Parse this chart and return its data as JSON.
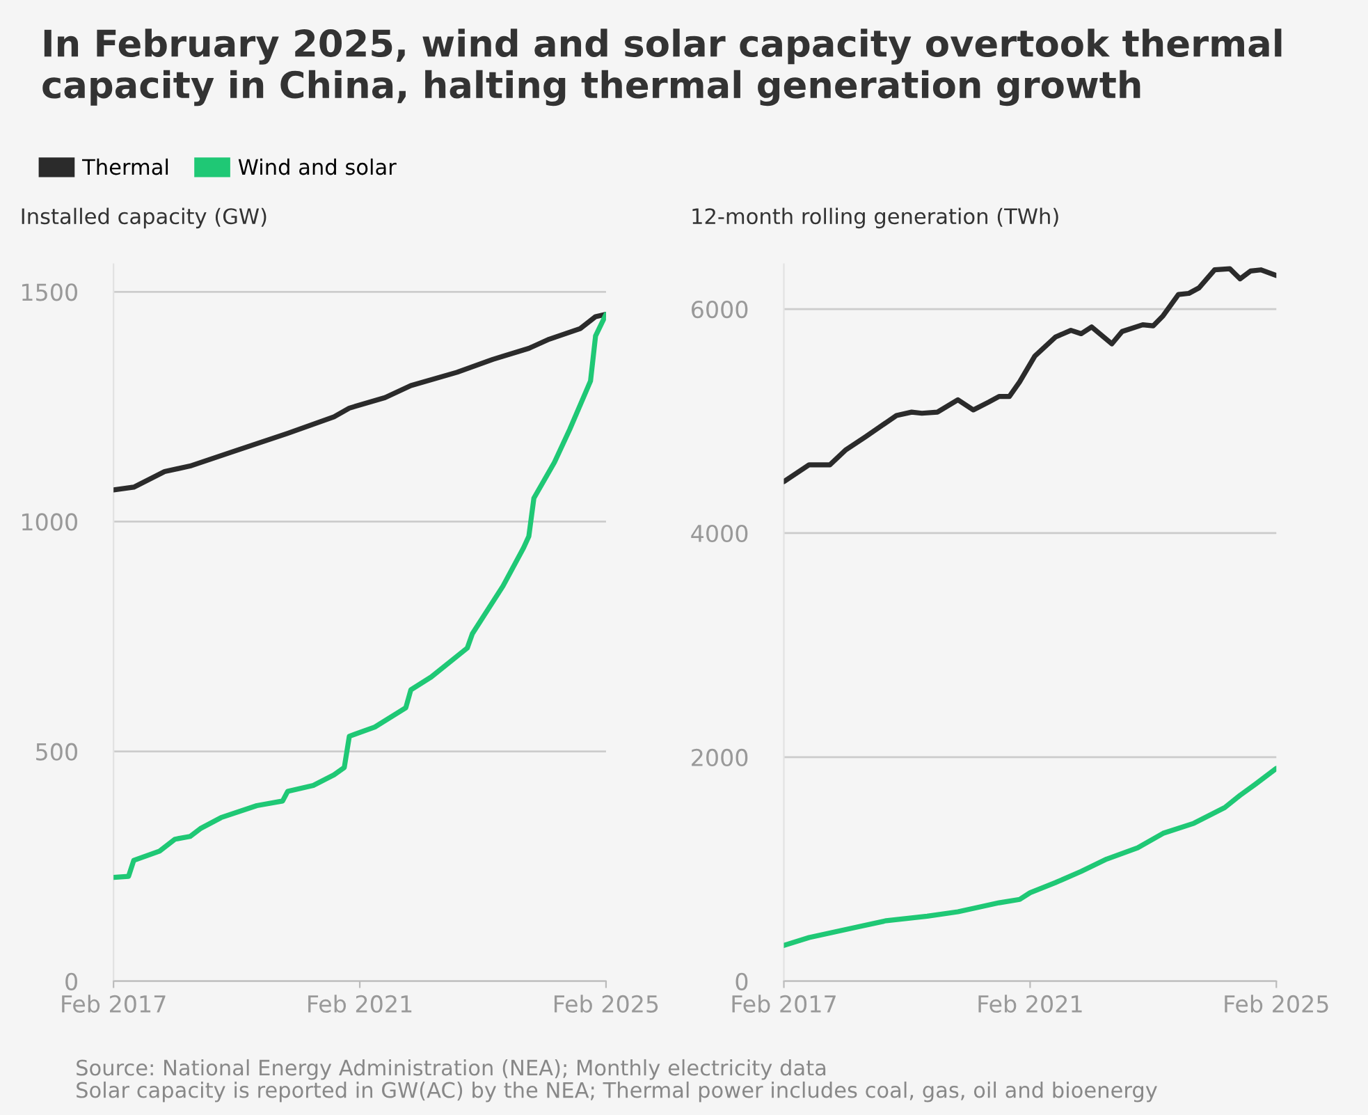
{
  "chart_data": [
    {
      "type": "line",
      "title": "In February 2025, wind and solar capacity overtook thermal capacity in China, halting thermal generation growth",
      "ylabel": "Installed capacity (GW)",
      "legend": "top",
      "grid": "y",
      "xlim": [
        "2017-02",
        "2025-02"
      ],
      "xticks": [
        {
          "value": "2017-02",
          "label": "Feb 2017"
        },
        {
          "value": "2021-02",
          "label": "Feb 2021"
        },
        {
          "value": "2025-02",
          "label": "Feb 2025"
        }
      ],
      "ylim": [
        0,
        1560
      ],
      "yticks": [
        0,
        500,
        1000,
        1500
      ],
      "series": [
        {
          "name": "Thermal",
          "color": "#2b2b2b",
          "x": [
            "2017-02",
            "2017-06",
            "2017-12",
            "2018-05",
            "2019-02",
            "2019-12",
            "2020-09",
            "2020-12",
            "2021-07",
            "2021-12",
            "2022-09",
            "2023-04",
            "2023-11",
            "2024-03",
            "2024-09",
            "2024-12",
            "2025-02"
          ],
          "values": [
            1069,
            1075,
            1109,
            1121,
            1155,
            1192,
            1228,
            1247,
            1270,
            1296,
            1325,
            1353,
            1377,
            1397,
            1420,
            1446,
            1451
          ]
        },
        {
          "name": "Wind and solar",
          "color": "#1fc875",
          "x": [
            "2017-02",
            "2017-05",
            "2017-06",
            "2017-11",
            "2018-02",
            "2018-05",
            "2018-07",
            "2018-11",
            "2019-06",
            "2019-11",
            "2019-12",
            "2020-05",
            "2020-09",
            "2020-11",
            "2020-12",
            "2021-05",
            "2021-11",
            "2021-12",
            "2022-04",
            "2022-11",
            "2022-12",
            "2023-06",
            "2023-10",
            "2023-11",
            "2023-12",
            "2024-04",
            "2024-07",
            "2024-11",
            "2024-12",
            "2025-02"
          ],
          "values": [
            226,
            228,
            263,
            283,
            309,
            315,
            332,
            356,
            382,
            392,
            413,
            426,
            449,
            465,
            533,
            553,
            595,
            634,
            662,
            725,
            756,
            860,
            943,
            968,
            1051,
            1129,
            1201,
            1306,
            1404,
            1451
          ]
        }
      ],
      "annotations": [
        "Source: National Energy Administration (NEA); Monthly electricity data",
        "Solar capacity is reported in GW(AC) by the NEA; Thermal power includes coal, gas, oil and bioenergy"
      ]
    },
    {
      "type": "line",
      "ylabel": "12-month rolling generation (TWh)",
      "grid": "y",
      "xlim": [
        "2017-02",
        "2025-02"
      ],
      "xticks": [
        {
          "value": "2017-02",
          "label": "Feb 2017"
        },
        {
          "value": "2021-02",
          "label": "Feb 2021"
        },
        {
          "value": "2025-02",
          "label": "Feb 2025"
        }
      ],
      "ylim": [
        0,
        6400
      ],
      "yticks": [
        0,
        2000,
        4000,
        6000
      ],
      "series": [
        {
          "color": "#2b2b2b",
          "x": [
            "2017-02",
            "2017-07",
            "2017-11",
            "2018-02",
            "2018-06",
            "2018-12",
            "2019-03",
            "2019-05",
            "2019-08",
            "2019-12",
            "2020-03",
            "2020-06",
            "2020-08",
            "2020-10",
            "2020-12",
            "2021-03",
            "2021-07",
            "2021-10",
            "2021-12",
            "2022-02",
            "2022-06",
            "2022-08",
            "2022-12",
            "2023-02",
            "2023-04",
            "2023-07",
            "2023-09",
            "2023-11",
            "2024-02",
            "2024-05",
            "2024-07",
            "2024-09",
            "2024-11",
            "2025-02"
          ],
          "values": [
            4460,
            4610,
            4610,
            4740,
            4860,
            5050,
            5080,
            5070,
            5080,
            5190,
            5100,
            5170,
            5220,
            5220,
            5350,
            5580,
            5750,
            5810,
            5780,
            5840,
            5690,
            5800,
            5860,
            5850,
            5940,
            6130,
            6140,
            6190,
            6350,
            6360,
            6270,
            6340,
            6350,
            6300
          ]
        },
        {
          "color": "#1fc875",
          "x": [
            "2017-02",
            "2017-07",
            "2018-04",
            "2018-10",
            "2019-06",
            "2019-12",
            "2020-08",
            "2020-12",
            "2021-02",
            "2021-07",
            "2021-12",
            "2022-05",
            "2022-11",
            "2023-04",
            "2023-10",
            "2024-04",
            "2024-07",
            "2024-10",
            "2025-02"
          ],
          "values": [
            320,
            390,
            480,
            540,
            580,
            620,
            700,
            730,
            790,
            880,
            980,
            1090,
            1190,
            1320,
            1410,
            1550,
            1660,
            1760,
            1900
          ]
        }
      ]
    }
  ]
}
